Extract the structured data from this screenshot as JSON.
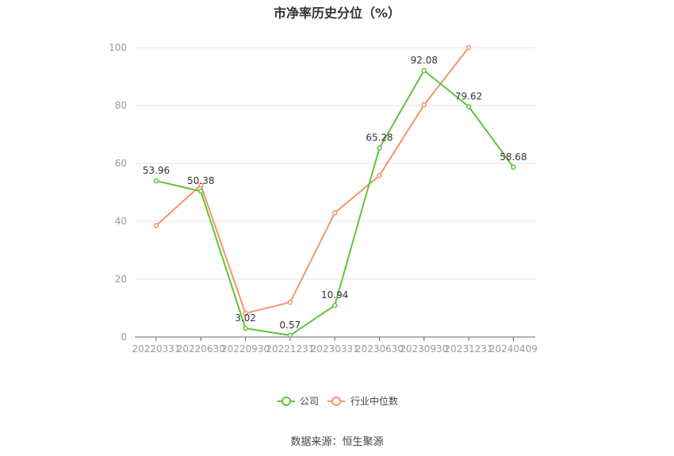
{
  "chart_data": {
    "type": "line",
    "title": "市净率历史分位（%）",
    "xlabel": "",
    "ylabel": "",
    "categories": [
      "20220331",
      "20220630",
      "20220930",
      "20221231",
      "20230331",
      "20230630",
      "20230930",
      "20231231",
      "20240409"
    ],
    "ylim": [
      0,
      100
    ],
    "yticks": [
      0,
      20,
      40,
      60,
      80,
      100
    ],
    "grid": true,
    "legend_position": "bottom-center",
    "series": [
      {
        "name": "公司",
        "color": "#5fc43a",
        "values": [
          53.96,
          50.38,
          3.02,
          0.57,
          10.94,
          65.28,
          92.08,
          79.62,
          58.68
        ],
        "labels": [
          "53.96",
          "50.38",
          "3.02",
          "0.57",
          "10.94",
          "65.28",
          "92.08",
          "79.62",
          "58.68"
        ]
      },
      {
        "name": "行业中位数",
        "color": "#f4956b",
        "values": [
          38.5,
          52.5,
          8.2,
          12.0,
          42.9,
          55.8,
          80.2,
          100.0,
          null
        ]
      }
    ]
  },
  "source_note": "数据来源：恒生聚源"
}
